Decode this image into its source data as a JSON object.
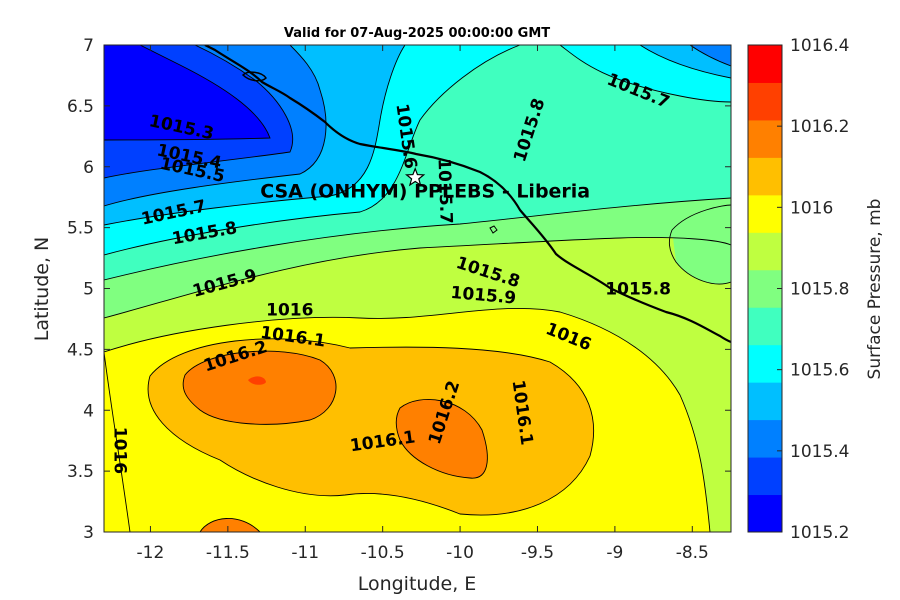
{
  "chart_data": {
    "type": "heatmap",
    "subtype": "filled-contour-map",
    "title": "Valid for 07-Aug-2025 00:00:00 GMT",
    "xlabel": "Longitude, E",
    "ylabel": "Latitude, N",
    "xlim": [
      -12.3,
      -8.25
    ],
    "ylim": [
      3,
      7
    ],
    "xticks": [
      -12,
      -11.5,
      -11,
      -10.5,
      -10,
      -9.5,
      -9,
      -8.5
    ],
    "xtick_labels": [
      "-12",
      "-11.5",
      "-11",
      "-10.5",
      "-10",
      "-9.5",
      "-9",
      "-8.5"
    ],
    "yticks": [
      3,
      3.5,
      4,
      4.5,
      5,
      5.5,
      6,
      6.5,
      7
    ],
    "ytick_labels": [
      "3",
      "3.5",
      "4",
      "4.5",
      "5",
      "5.5",
      "6",
      "6.5",
      "7"
    ],
    "colorbar": {
      "label": "Surface Pressure, mb",
      "min": 1015.2,
      "max": 1016.4,
      "ticks": [
        1015.2,
        1015.4,
        1015.6,
        1015.8,
        1016,
        1016.2,
        1016.4
      ],
      "tick_labels": [
        "1015.2",
        "1015.4",
        "1015.6",
        "1015.8",
        "1016",
        "1016.2",
        "1016.4"
      ],
      "colors": [
        "#0000ff",
        "#0040ff",
        "#0080ff",
        "#00bfff",
        "#00ffff",
        "#40ffbf",
        "#80ff80",
        "#bfff40",
        "#ffff00",
        "#ffbf00",
        "#ff8000",
        "#ff4000",
        "#ff0000"
      ]
    },
    "contour_interval": 0.1,
    "contour_labels": [
      {
        "text": "1015.3",
        "lon": -11.8,
        "lat": 6.32,
        "rotation": 12
      },
      {
        "text": "1015.4",
        "lon": -11.75,
        "lat": 6.08,
        "rotation": 12
      },
      {
        "text": "1015.5",
        "lon": -11.73,
        "lat": 5.97,
        "rotation": 12
      },
      {
        "text": "1015.7",
        "lon": -11.85,
        "lat": 5.62,
        "rotation": -12
      },
      {
        "text": "1015.8",
        "lon": -11.65,
        "lat": 5.45,
        "rotation": -10
      },
      {
        "text": "1015.9",
        "lon": -11.52,
        "lat": 5.04,
        "rotation": -15
      },
      {
        "text": "1016",
        "lon": -11.1,
        "lat": 4.82,
        "rotation": 0
      },
      {
        "text": "1016.1",
        "lon": -11.08,
        "lat": 4.6,
        "rotation": 8
      },
      {
        "text": "1016.2",
        "lon": -11.45,
        "lat": 4.44,
        "rotation": -18
      },
      {
        "text": "1015.6",
        "lon": -10.35,
        "lat": 6.25,
        "rotation": 82
      },
      {
        "text": "1015.7",
        "lon": -10.1,
        "lat": 5.8,
        "rotation": 88
      },
      {
        "text": "1015.8",
        "lon": -9.55,
        "lat": 6.3,
        "rotation": -72
      },
      {
        "text": "1015.7",
        "lon": -8.85,
        "lat": 6.62,
        "rotation": 22
      },
      {
        "text": "1015.8",
        "lon": -9.82,
        "lat": 5.13,
        "rotation": 18
      },
      {
        "text": "1015.9",
        "lon": -9.85,
        "lat": 4.94,
        "rotation": 5
      },
      {
        "text": "1016",
        "lon": -9.3,
        "lat": 4.6,
        "rotation": 22
      },
      {
        "text": "1015.8",
        "lon": -8.85,
        "lat": 4.99,
        "rotation": 0
      },
      {
        "text": "1016.2",
        "lon": -10.1,
        "lat": 3.98,
        "rotation": -72
      },
      {
        "text": "1016.1",
        "lon": -10.5,
        "lat": 3.74,
        "rotation": -8
      },
      {
        "text": "1016.1",
        "lon": -9.6,
        "lat": 3.98,
        "rotation": 82
      },
      {
        "text": "1016",
        "lon": -12.2,
        "lat": 3.67,
        "rotation": 90
      }
    ],
    "station": {
      "name": "CSA (ONHYM) PPLEBS  - Liberia",
      "lon": -10.29,
      "lat": 5.91,
      "marker": "star"
    },
    "grid": false,
    "legend": "none"
  }
}
